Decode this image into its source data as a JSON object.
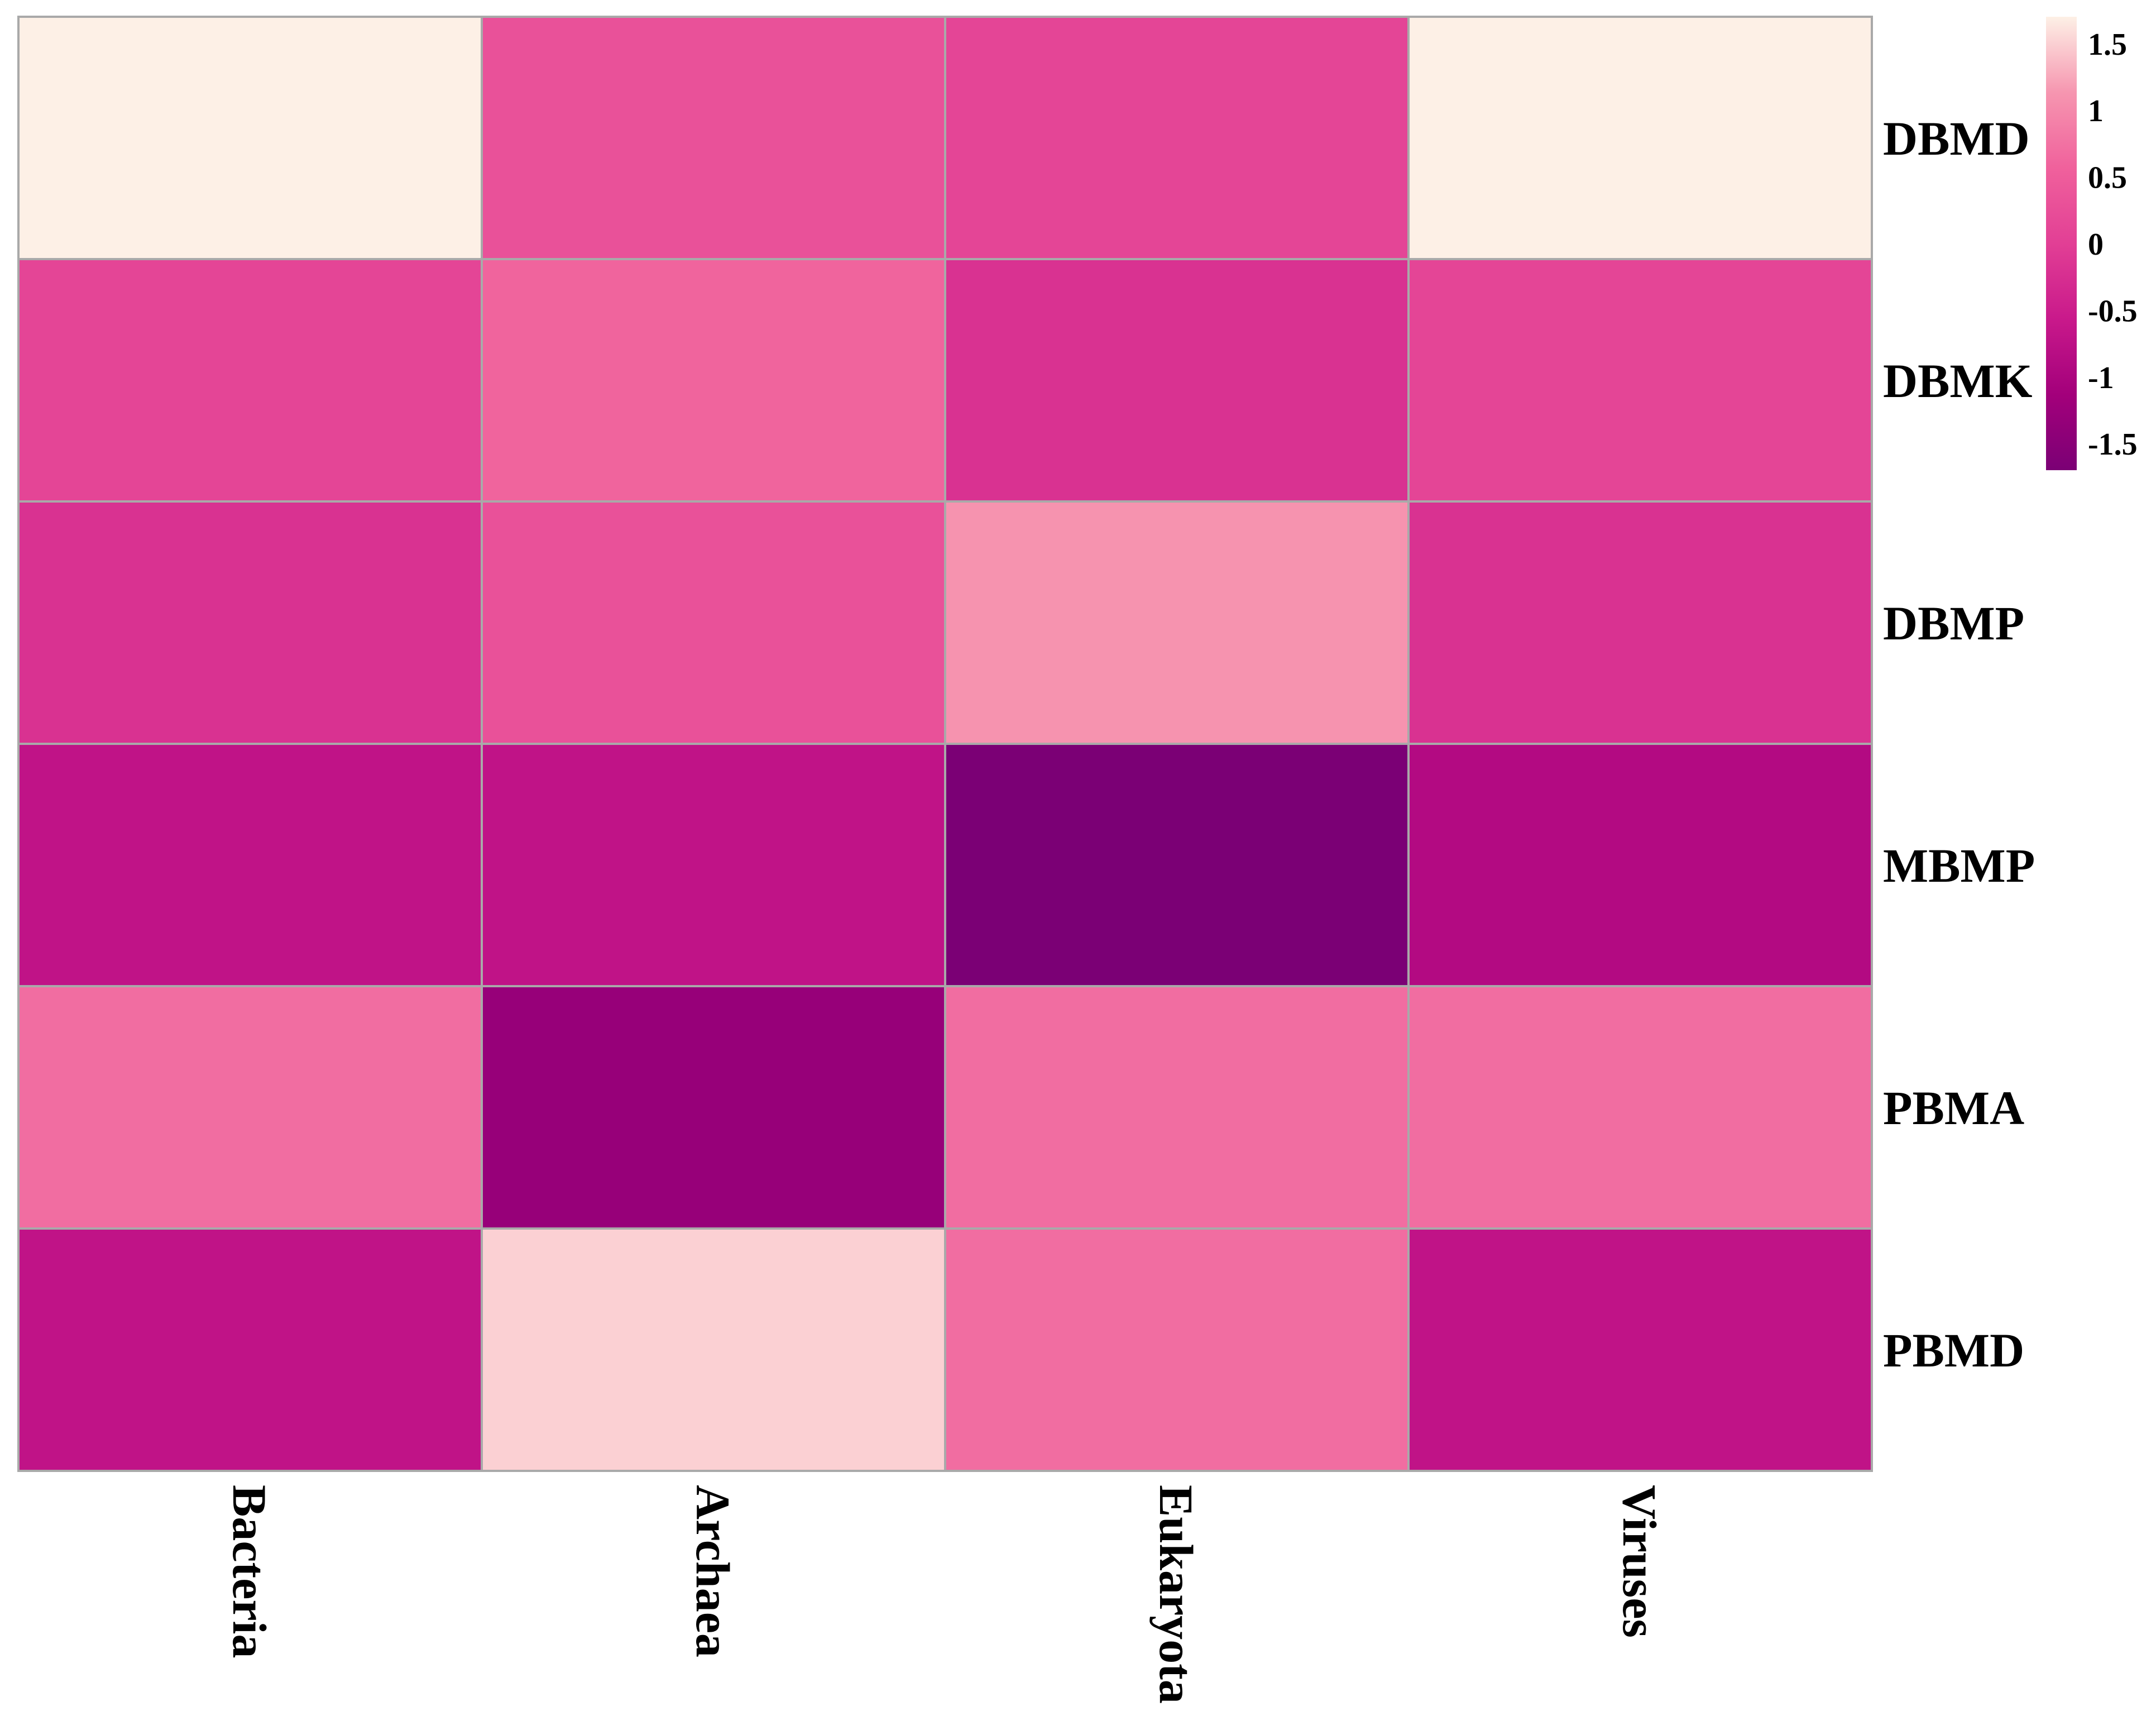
{
  "chart_data": {
    "type": "heatmap",
    "title": "",
    "xlabel": "",
    "ylabel": "",
    "rows": [
      "DBMD",
      "DBMK",
      "DBMP",
      "MBMP",
      "PBMA",
      "PBMD"
    ],
    "columns": [
      "Bacteria",
      "Archaea",
      "Eukaryota",
      "Viruses"
    ],
    "values": [
      [
        1.7,
        0.3,
        0.1,
        1.7
      ],
      [
        0.1,
        0.6,
        -0.2,
        0.1
      ],
      [
        -0.2,
        0.3,
        1.1,
        -0.2
      ],
      [
        -0.7,
        -0.7,
        -1.7,
        -0.9
      ],
      [
        0.7,
        -1.3,
        0.7,
        0.7
      ],
      [
        -0.7,
        1.5,
        0.7,
        -0.7
      ]
    ],
    "colorbar": {
      "range": [
        -1.7,
        1.7
      ],
      "ticks": [
        "1.5",
        "1",
        "0.5",
        "0",
        "-0.5",
        "-1",
        "-1.5"
      ],
      "tick_values": [
        1.5,
        1,
        0.5,
        0,
        -0.5,
        -1,
        -1.5
      ],
      "colors": [
        "#7b0075",
        "#a3007b",
        "#c9198b",
        "#e23f95",
        "#f0619c",
        "#f696b0",
        "#fdf0e6"
      ],
      "position": "top-right"
    },
    "grid": true
  }
}
